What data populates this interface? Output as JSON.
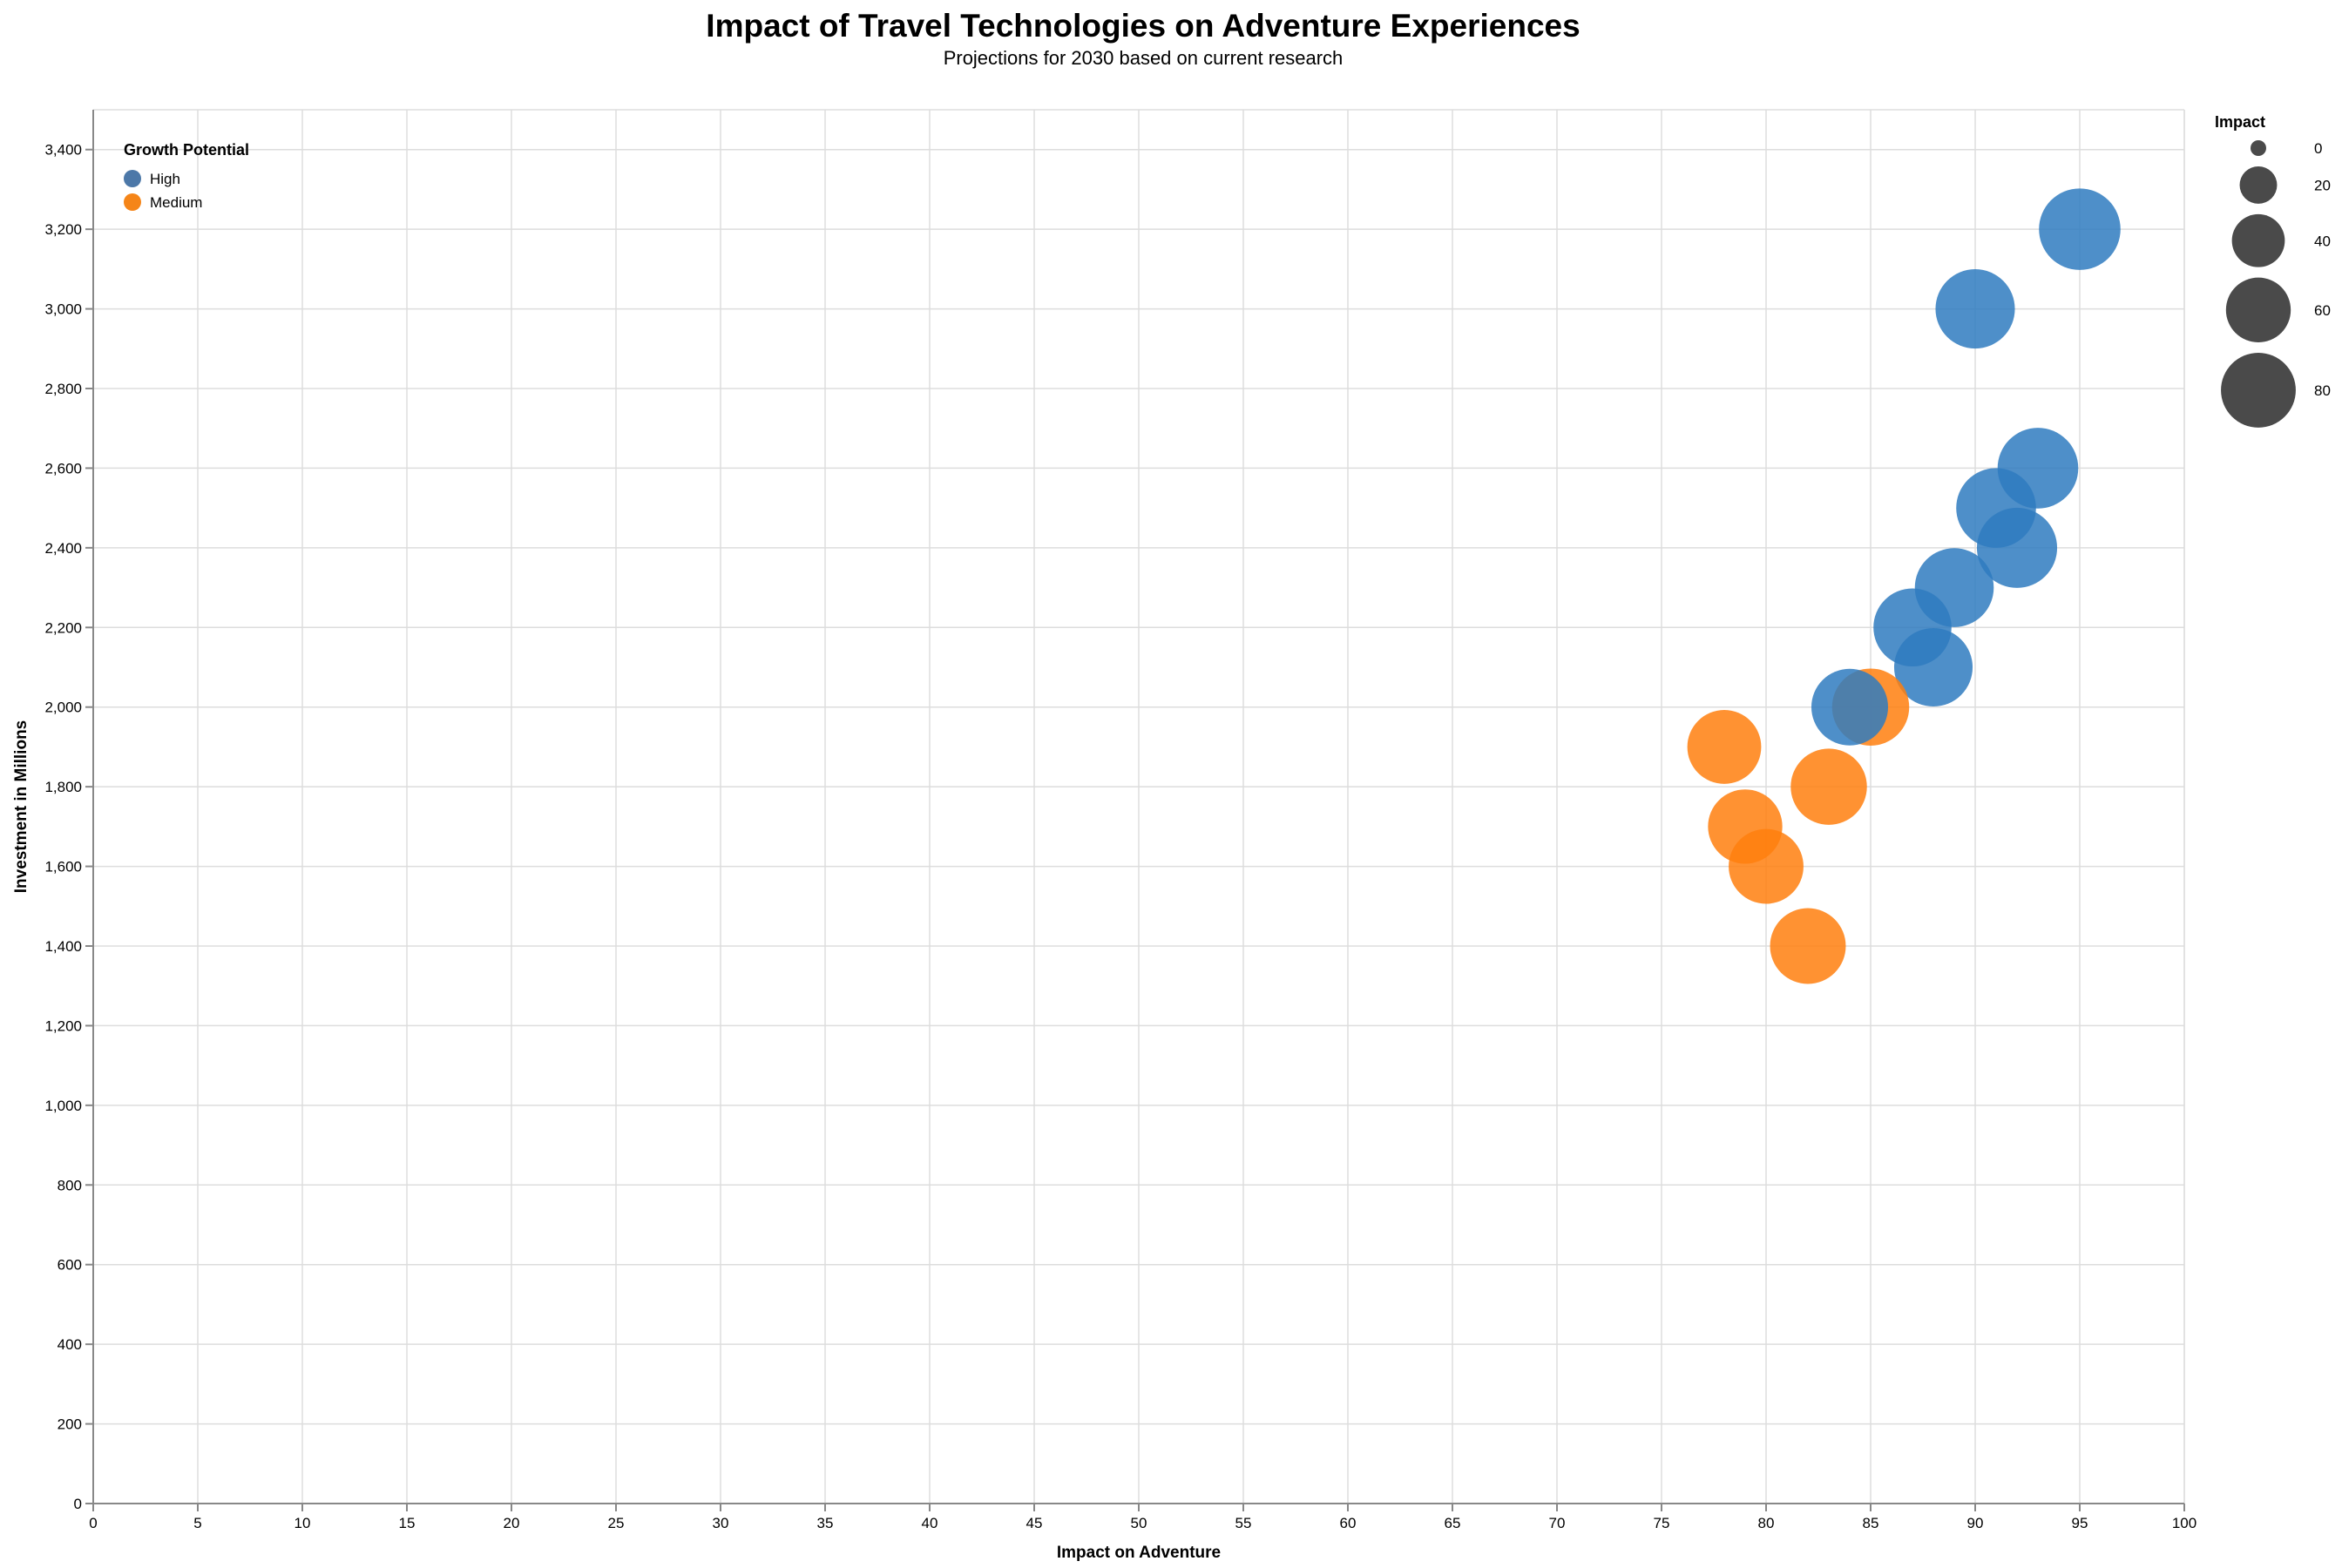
{
  "chart_data": {
    "type": "scatter",
    "title": "Impact of Travel Technologies on Adventure Experiences",
    "subtitle": "Projections for 2030 based on current research",
    "xlabel": "Impact on Adventure",
    "ylabel": "Investment in Millions",
    "xlim": [
      0,
      100
    ],
    "ylim": [
      0,
      3500
    ],
    "x_ticks": [
      "0",
      "5",
      "10",
      "15",
      "20",
      "25",
      "30",
      "35",
      "40",
      "45",
      "50",
      "55",
      "60",
      "65",
      "70",
      "75",
      "80",
      "85",
      "90",
      "95",
      "100"
    ],
    "y_ticks": [
      "0",
      "200",
      "400",
      "600",
      "800",
      "1,000",
      "1,200",
      "1,400",
      "1,600",
      "1,800",
      "2,000",
      "2,200",
      "2,400",
      "2,600",
      "2,800",
      "3,000",
      "3,200",
      "3,400"
    ],
    "grid": true,
    "color_legend": {
      "title": "Growth Potential",
      "placement": "top-left inside",
      "items": [
        {
          "label": "High",
          "color": "#4c78a8"
        },
        {
          "label": "Medium",
          "color": "#f58518"
        }
      ]
    },
    "size_legend": {
      "title": "Impact",
      "placement": "right",
      "values": [
        0,
        20,
        40,
        60,
        80
      ]
    },
    "colors": {
      "High": "#2f7bbf",
      "Medium": "#ff7f0e",
      "legend_size": "#4a4a4a"
    },
    "series": [
      {
        "name": "High",
        "points": [
          {
            "x": 95,
            "y": 3200,
            "size": 95
          },
          {
            "x": 90,
            "y": 3000,
            "size": 90
          },
          {
            "x": 93,
            "y": 2600,
            "size": 93
          },
          {
            "x": 91,
            "y": 2500,
            "size": 91
          },
          {
            "x": 92,
            "y": 2400,
            "size": 92
          },
          {
            "x": 89,
            "y": 2300,
            "size": 89
          },
          {
            "x": 87,
            "y": 2200,
            "size": 87
          },
          {
            "x": 88,
            "y": 2100,
            "size": 88
          },
          {
            "x": 84,
            "y": 2000,
            "size": 84
          }
        ]
      },
      {
        "name": "Medium",
        "points": [
          {
            "x": 85,
            "y": 2000,
            "size": 85
          },
          {
            "x": 78,
            "y": 1900,
            "size": 78
          },
          {
            "x": 83,
            "y": 1800,
            "size": 83
          },
          {
            "x": 79,
            "y": 1700,
            "size": 79
          },
          {
            "x": 80,
            "y": 1600,
            "size": 80
          },
          {
            "x": 82,
            "y": 1400,
            "size": 82
          }
        ]
      }
    ]
  }
}
